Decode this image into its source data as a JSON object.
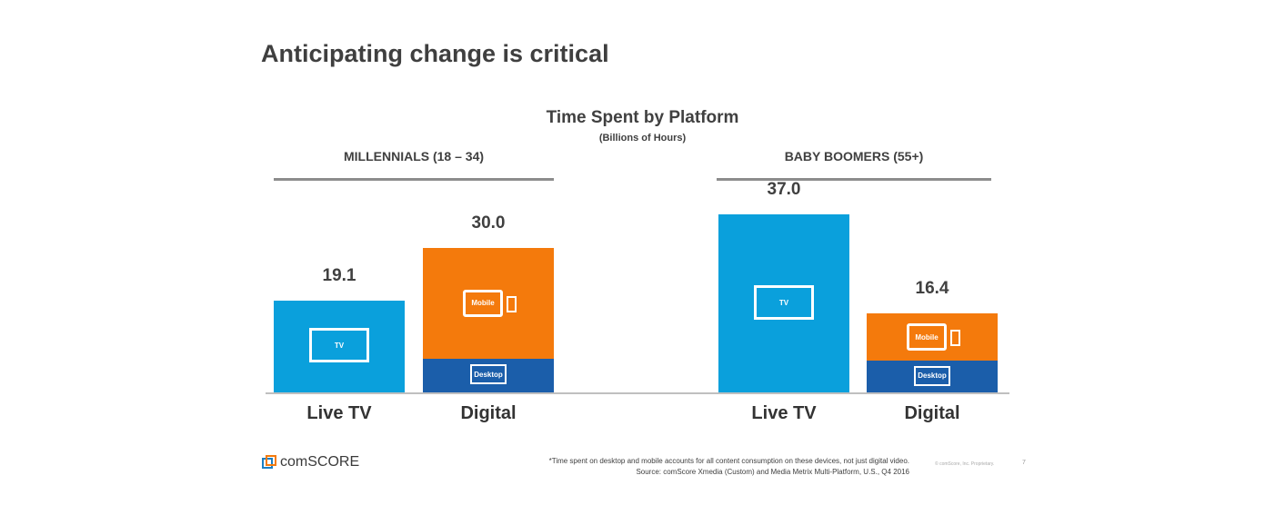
{
  "slide": {
    "title": "Anticipating change is critical",
    "footnote": "*Time spent on desktop and mobile accounts for all content consumption on these devices, not just digital video.",
    "source": "Source: comScore Xmedia (Custom) and Media Metrix Multi-Platform, U.S., Q4 2016",
    "copyright": "© comScore, Inc. Proprietary.",
    "page": "7",
    "logo": "comSCORE"
  },
  "chart_data": {
    "type": "bar",
    "title": "Time Spent by Platform",
    "subtitle": "(Billions of Hours)",
    "ylim": [
      0,
      37
    ],
    "colors": {
      "tv": "#0aa0dc",
      "mobile": "#f47a0c",
      "desktop": "#1b5eaa"
    },
    "groups": [
      {
        "name": "MILLENNIALS (18 – 34)",
        "bars": [
          {
            "category": "Live TV",
            "label": "19.1",
            "segments": [
              {
                "name": "TV",
                "value": 19.1,
                "color": "tv"
              }
            ]
          },
          {
            "category": "Digital",
            "label": "30.0",
            "segments": [
              {
                "name": "Desktop",
                "value": 7.0,
                "color": "desktop"
              },
              {
                "name": "Mobile",
                "value": 23.0,
                "color": "mobile"
              }
            ]
          }
        ]
      },
      {
        "name": "BABY BOOMERS (55+)",
        "bars": [
          {
            "category": "Live TV",
            "label": "37.0",
            "segments": [
              {
                "name": "TV",
                "value": 37.0,
                "color": "tv"
              }
            ]
          },
          {
            "category": "Digital",
            "label": "16.4",
            "segments": [
              {
                "name": "Desktop",
                "value": 6.6,
                "color": "desktop"
              },
              {
                "name": "Mobile",
                "value": 9.8,
                "color": "mobile"
              }
            ]
          }
        ]
      }
    ]
  }
}
